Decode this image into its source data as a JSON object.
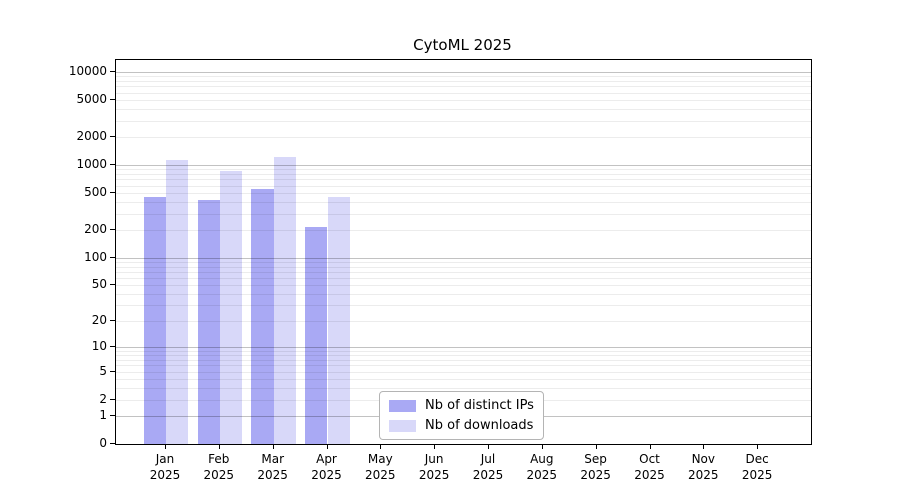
{
  "chart_data": {
    "type": "bar",
    "title": "CytoML 2025",
    "categories": [
      "Jan",
      "Feb",
      "Mar",
      "Apr",
      "May",
      "Jun",
      "Jul",
      "Aug",
      "Sep",
      "Oct",
      "Nov",
      "Dec"
    ],
    "year_label": "2025",
    "series": [
      {
        "name": "Nb of distinct IPs",
        "color": "#a9a9f4",
        "values": [
          450,
          420,
          550,
          215,
          0,
          0,
          0,
          0,
          0,
          0,
          0,
          0
        ]
      },
      {
        "name": "Nb of downloads",
        "color": "#d8d8f9",
        "values": [
          1130,
          860,
          1220,
          450,
          0,
          0,
          0,
          0,
          0,
          0,
          0,
          0
        ]
      }
    ],
    "y_scale": "log10(value+1)",
    "y_ticks": [
      0,
      1,
      2,
      5,
      10,
      20,
      50,
      100,
      200,
      500,
      1000,
      2000,
      5000,
      10000
    ],
    "major_gridlines": [
      1,
      10,
      100,
      1000,
      10000
    ],
    "minor_gridlines_rule": "m*10^n for m=2..9, n=0..3",
    "ylim": [
      0,
      14000
    ],
    "grid": true,
    "legend_position": "lower center",
    "xlabel": "",
    "ylabel": ""
  },
  "colors": {
    "background": "#ffffff",
    "axis_frame": "#000000",
    "bar_distinct_ips": "#a9a9f4",
    "bar_downloads": "#d8d8f9",
    "text": "#000000",
    "legend_border": "#b4b4b4"
  }
}
